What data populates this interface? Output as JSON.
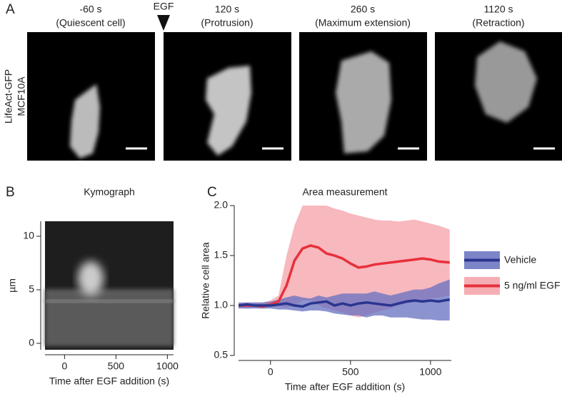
{
  "panel_a": {
    "label": "A",
    "row_label": [
      "LifeAct-GFP",
      "MCF10A"
    ],
    "stimulus": "EGF",
    "frames": [
      {
        "time": "-60 s",
        "caption": "(Quiescent cell)"
      },
      {
        "time": "120 s",
        "caption": "(Protrusion)"
      },
      {
        "time": "260 s",
        "caption": "(Maximum extension)"
      },
      {
        "time": "1120 s",
        "caption": "(Retraction)"
      }
    ]
  },
  "chart_data": [
    {
      "type": "image",
      "panel_label": "B",
      "title": "Kymograph",
      "xlabel": "Time after EGF addition (s)",
      "ylabel": "µm",
      "xlim": [
        -190,
        1060
      ],
      "xticks": [
        0,
        500,
        1000
      ],
      "ylim": [
        -0.6,
        11.4
      ],
      "yticks": [
        0,
        5,
        10
      ]
    },
    {
      "type": "line",
      "panel_label": "C",
      "title": "Area measurement",
      "xlabel": "Time after EGF addition (s)",
      "ylabel": "Relative cell area",
      "xlim": [
        -200,
        1130
      ],
      "xticks": [
        0,
        500,
        1000
      ],
      "ylim": [
        0.5,
        2.0
      ],
      "yticks": [
        {
          "value": 0.5,
          "label": "0.5"
        },
        {
          "value": 1.0,
          "label": "1.0"
        },
        {
          "value": 1.5,
          "label": "1.5"
        },
        {
          "value": 2.0,
          "label": "2.0"
        }
      ],
      "legend": "right",
      "x": [
        -200,
        -150,
        -100,
        -50,
        0,
        50,
        100,
        150,
        200,
        250,
        300,
        350,
        400,
        450,
        500,
        550,
        600,
        650,
        700,
        750,
        800,
        850,
        900,
        950,
        1000,
        1050,
        1120
      ],
      "series": [
        {
          "name": "5 ng/ml EGF",
          "color": "#e8303a",
          "band_color": "#f4a0a8",
          "values": [
            1.0,
            1.0,
            1.0,
            0.99,
            1.01,
            1.04,
            1.2,
            1.45,
            1.57,
            1.6,
            1.58,
            1.52,
            1.5,
            1.47,
            1.42,
            1.38,
            1.39,
            1.41,
            1.42,
            1.43,
            1.44,
            1.45,
            1.46,
            1.47,
            1.46,
            1.44,
            1.43
          ],
          "upper": [
            1.02,
            1.03,
            1.03,
            1.03,
            1.05,
            1.1,
            1.5,
            1.8,
            2.0,
            2.0,
            2.0,
            2.0,
            1.97,
            1.95,
            1.92,
            1.9,
            1.88,
            1.86,
            1.85,
            1.85,
            1.84,
            1.85,
            1.86,
            1.84,
            1.82,
            1.8,
            1.76
          ],
          "lower": [
            0.98,
            0.97,
            0.98,
            0.97,
            0.98,
            0.99,
            0.98,
            1.0,
            1.05,
            1.05,
            1.0,
            0.97,
            0.95,
            0.93,
            0.9,
            0.88,
            0.9,
            0.93,
            0.95,
            0.97,
            1.0,
            1.02,
            1.03,
            1.05,
            1.07,
            1.08,
            1.1
          ]
        },
        {
          "name": "Vehicle",
          "color": "#2a3590",
          "band_color": "#6670c0",
          "values": [
            1.0,
            1.01,
            1.0,
            1.0,
            1.0,
            1.01,
            1.02,
            1.0,
            0.99,
            1.02,
            1.03,
            1.04,
            1.0,
            1.02,
            1.0,
            1.02,
            1.03,
            1.02,
            1.01,
            1.0,
            1.02,
            1.04,
            1.05,
            1.04,
            1.05,
            1.04,
            1.06
          ],
          "upper": [
            1.03,
            1.03,
            1.03,
            1.03,
            1.04,
            1.06,
            1.08,
            1.1,
            1.08,
            1.07,
            1.1,
            1.08,
            1.1,
            1.12,
            1.12,
            1.12,
            1.12,
            1.14,
            1.12,
            1.1,
            1.12,
            1.14,
            1.16,
            1.16,
            1.18,
            1.22,
            1.26
          ],
          "lower": [
            0.97,
            0.97,
            0.97,
            0.97,
            0.97,
            0.96,
            0.96,
            0.95,
            0.94,
            0.95,
            0.95,
            0.94,
            0.92,
            0.91,
            0.9,
            0.9,
            0.88,
            0.9,
            0.9,
            0.88,
            0.88,
            0.88,
            0.87,
            0.86,
            0.86,
            0.85,
            0.85
          ]
        }
      ]
    }
  ]
}
